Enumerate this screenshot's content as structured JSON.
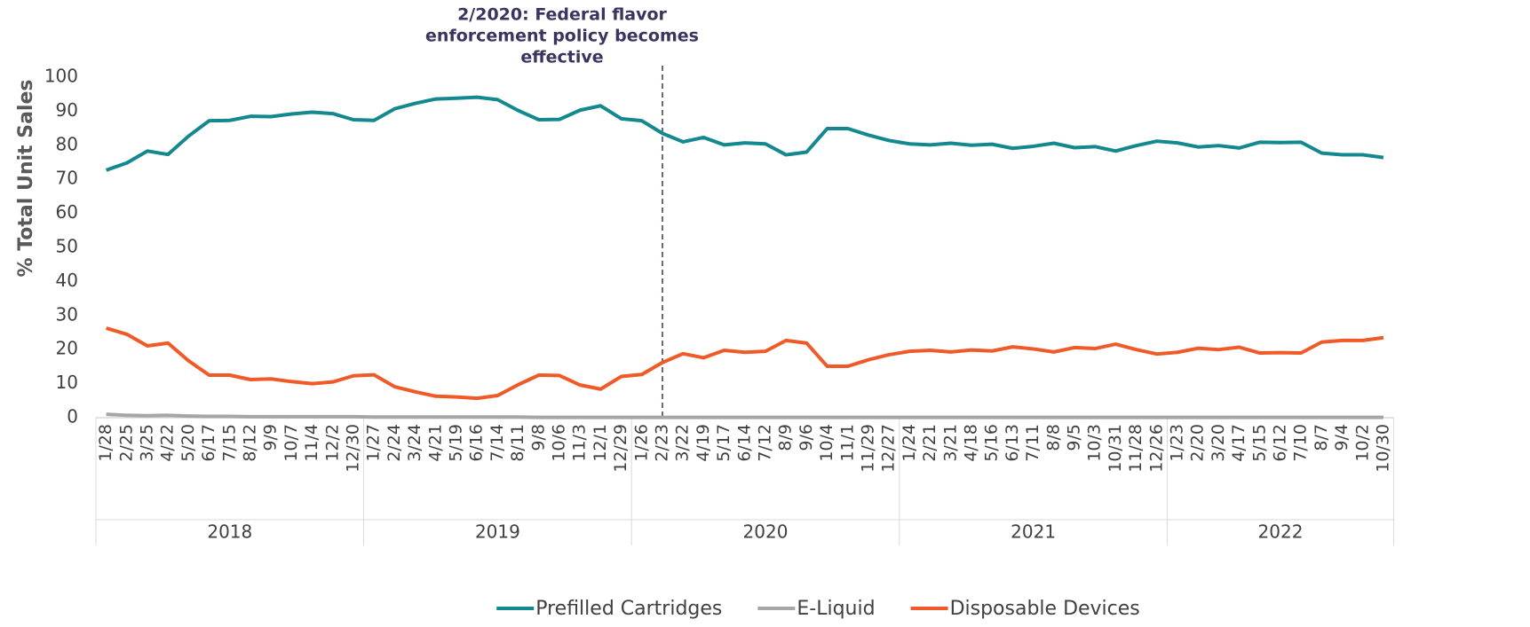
{
  "chart_data": {
    "type": "line",
    "ylabel": "% Total Unit Sales",
    "annotation": {
      "lines": [
        "2/2020: Federal flavor",
        "enforcement policy becomes",
        "effective"
      ],
      "at": "2/23",
      "color": "#3b3461"
    },
    "groups": [
      {
        "name": "2018",
        "categories": [
          "1/28",
          "2/25",
          "3/25",
          "4/22",
          "5/20",
          "6/17",
          "7/15",
          "8/12",
          "9/9",
          "10/7",
          "11/4",
          "12/2",
          "12/30"
        ]
      },
      {
        "name": "2019",
        "categories": [
          "1/27",
          "2/24",
          "3/24",
          "4/21",
          "5/19",
          "6/16",
          "7/14",
          "8/11",
          "9/8",
          "10/6",
          "11/3",
          "12/1",
          "12/29"
        ]
      },
      {
        "name": "2020",
        "categories": [
          "1/26",
          "2/23",
          "3/22",
          "4/19",
          "5/17",
          "6/14",
          "7/12",
          "8/9",
          "9/6",
          "10/4",
          "11/1",
          "11/29",
          "12/27"
        ]
      },
      {
        "name": "2021",
        "categories": [
          "1/24",
          "2/21",
          "3/21",
          "4/18",
          "5/16",
          "6/13",
          "7/11",
          "8/8",
          "9/5",
          "10/3",
          "10/31",
          "11/28",
          "12/26"
        ]
      },
      {
        "name": "2022",
        "categories": [
          "1/23",
          "2/20",
          "3/20",
          "4/17",
          "5/15",
          "6/12",
          "7/10",
          "8/7",
          "9/4",
          "10/2",
          "10/30"
        ]
      }
    ],
    "series": [
      {
        "name": "Prefilled Cartridges",
        "color": "#13888f",
        "values": [
          72.7,
          74.8,
          78.3,
          77.3,
          82.7,
          87.2,
          87.3,
          88.5,
          88.4,
          89.2,
          89.7,
          89.3,
          87.5,
          87.3,
          90.7,
          92.3,
          93.6,
          93.8,
          94.1,
          93.4,
          90.2,
          87.5,
          87.6,
          90.3,
          91.6,
          87.8,
          87.2,
          83.5,
          81.0,
          82.3,
          80.1,
          80.7,
          80.4,
          77.2,
          78.0,
          84.9,
          84.9,
          83.0,
          81.4,
          80.4,
          80.1,
          80.6,
          80.0,
          80.3,
          79.1,
          79.7,
          80.6,
          79.3,
          79.6,
          78.3,
          79.9,
          81.2,
          80.7,
          79.5,
          79.9,
          79.2,
          80.9,
          80.8,
          80.9,
          77.7,
          77.2,
          77.2,
          76.4
        ]
      },
      {
        "name": "E-Liquid",
        "color": "#a6a6a6",
        "values": [
          1.0,
          0.7,
          0.6,
          0.7,
          0.5,
          0.4,
          0.4,
          0.3,
          0.3,
          0.3,
          0.3,
          0.3,
          0.3,
          0.2,
          0.2,
          0.2,
          0.2,
          0.2,
          0.2,
          0.2,
          0.2,
          0.1,
          0.1,
          0.1,
          0.1,
          0.1,
          0.1,
          0.1,
          0.1,
          0.1,
          0.1,
          0.1,
          0.1,
          0.1,
          0.1,
          0.1,
          0.1,
          0.1,
          0.1,
          0.1,
          0.1,
          0.1,
          0.1,
          0.1,
          0.1,
          0.1,
          0.1,
          0.1,
          0.1,
          0.1,
          0.1,
          0.1,
          0.1,
          0.1,
          0.1,
          0.1,
          0.1,
          0.1,
          0.1,
          0.1,
          0.1,
          0.1,
          0.1
        ]
      },
      {
        "name": "Disposable Devices",
        "color": "#f05a28",
        "values": [
          26.3,
          24.5,
          21.1,
          21.9,
          16.7,
          12.5,
          12.5,
          11.2,
          11.4,
          10.6,
          10.0,
          10.5,
          12.3,
          12.6,
          9.1,
          7.6,
          6.3,
          6.1,
          5.7,
          6.5,
          9.7,
          12.5,
          12.4,
          9.6,
          8.4,
          12.1,
          12.7,
          16.2,
          18.8,
          17.6,
          19.8,
          19.2,
          19.5,
          22.7,
          21.9,
          15.1,
          15.1,
          17.0,
          18.5,
          19.5,
          19.8,
          19.3,
          19.9,
          19.6,
          20.8,
          20.2,
          19.3,
          20.6,
          20.3,
          21.6,
          20.0,
          18.7,
          19.2,
          20.4,
          20.0,
          20.7,
          19.0,
          19.1,
          19.0,
          22.2,
          22.7,
          22.7,
          23.5
        ]
      }
    ],
    "ylim": [
      0,
      100
    ],
    "yticks": [
      0,
      10,
      20,
      30,
      40,
      50,
      60,
      70,
      80,
      90,
      100
    ],
    "grid": false,
    "legend": "bottom"
  }
}
